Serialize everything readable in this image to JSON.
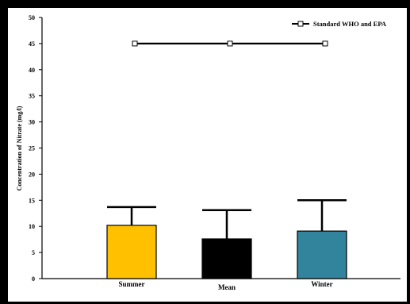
{
  "chart_data": {
    "type": "bar",
    "categories": [
      "Summer",
      "Mean",
      "Winter"
    ],
    "values": [
      10.2,
      7.6,
      9.1
    ],
    "error_upper": [
      13.7,
      13.1,
      15.0
    ],
    "bar_colors": [
      "#ffc000",
      "#000000",
      "#31849b"
    ],
    "ylabel": "Concentration of Nitrate (mg/l)",
    "xlabel": "",
    "ylim": [
      0,
      50
    ],
    "yticks": [
      0,
      5,
      10,
      15,
      20,
      25,
      30,
      35,
      40,
      45,
      50
    ],
    "grid": false,
    "reference_line": {
      "name": "Standard WHO and EPA",
      "values": [
        45,
        45,
        45
      ],
      "color": "#000000"
    },
    "legend_position": "top-right"
  }
}
